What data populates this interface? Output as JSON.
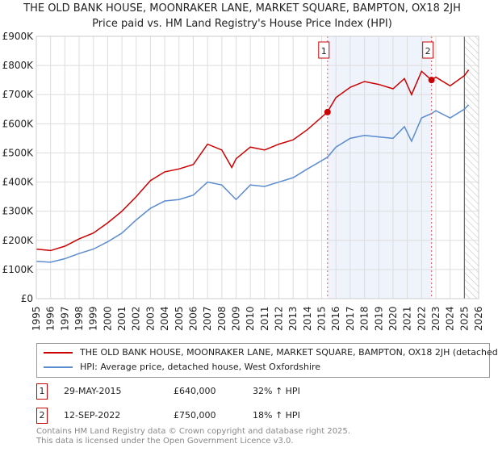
{
  "chart_data": {
    "type": "line",
    "title": "THE OLD BANK HOUSE, MOONRAKER LANE, MARKET SQUARE, BAMPTON, OX18 2JH",
    "subtitle": "Price paid vs. HM Land Registry's House Price Index (HPI)",
    "xlim": [
      1995,
      2026
    ],
    "ylim": [
      0,
      900000
    ],
    "yticks": [
      {
        "v": 0,
        "label": "£0"
      },
      {
        "v": 100000,
        "label": "£100K"
      },
      {
        "v": 200000,
        "label": "£200K"
      },
      {
        "v": 300000,
        "label": "£300K"
      },
      {
        "v": 400000,
        "label": "£400K"
      },
      {
        "v": 500000,
        "label": "£500K"
      },
      {
        "v": 600000,
        "label": "£600K"
      },
      {
        "v": 700000,
        "label": "£700K"
      },
      {
        "v": 800000,
        "label": "£800K"
      },
      {
        "v": 900000,
        "label": "£900K"
      }
    ],
    "xticks": [
      "1995",
      "1996",
      "1997",
      "1998",
      "1999",
      "2000",
      "2001",
      "2002",
      "2003",
      "2004",
      "2005",
      "2006",
      "2007",
      "2008",
      "2009",
      "2010",
      "2011",
      "2012",
      "2013",
      "2014",
      "2015",
      "2016",
      "2017",
      "2018",
      "2019",
      "2020",
      "2021",
      "2022",
      "2023",
      "2024",
      "2025",
      "2026"
    ],
    "series": [
      {
        "name": "THE OLD BANK HOUSE, MOONRAKER LANE, MARKET SQUARE, BAMPTON, OX18 2JH (detached",
        "color": "#cc0000",
        "x": [
          1995,
          1996,
          1997,
          1998,
          1999,
          2000,
          2001,
          2002,
          2003,
          2004,
          2005,
          2006,
          2007,
          2008,
          2008.7,
          2009,
          2010,
          2011,
          2012,
          2013,
          2014,
          2015.4,
          2016,
          2017,
          2018,
          2019,
          2020,
          2020.8,
          2021.3,
          2022,
          2022.7,
          2023,
          2024,
          2025,
          2025.3
        ],
        "y": [
          170000,
          165000,
          180000,
          205000,
          225000,
          260000,
          300000,
          350000,
          405000,
          435000,
          445000,
          460000,
          530000,
          510000,
          450000,
          480000,
          520000,
          510000,
          530000,
          545000,
          580000,
          640000,
          690000,
          725000,
          745000,
          735000,
          720000,
          755000,
          700000,
          780000,
          750000,
          760000,
          730000,
          765000,
          785000
        ]
      },
      {
        "name": "HPI: Average price, detached house, West Oxfordshire",
        "color": "#5b8bd0",
        "x": [
          1995,
          1996,
          1997,
          1998,
          1999,
          2000,
          2001,
          2002,
          2003,
          2004,
          2005,
          2006,
          2007,
          2008,
          2009,
          2010,
          2011,
          2012,
          2013,
          2014,
          2015.4,
          2016,
          2017,
          2018,
          2019,
          2020,
          2020.8,
          2021.3,
          2022,
          2022.7,
          2023,
          2024,
          2025,
          2025.3
        ],
        "y": [
          128000,
          125000,
          137000,
          155000,
          170000,
          195000,
          225000,
          270000,
          310000,
          335000,
          340000,
          355000,
          400000,
          390000,
          340000,
          390000,
          385000,
          400000,
          415000,
          445000,
          485000,
          520000,
          550000,
          560000,
          555000,
          550000,
          590000,
          540000,
          620000,
          635000,
          645000,
          620000,
          650000,
          665000
        ]
      }
    ],
    "sales": [
      {
        "id": "1",
        "x": 2015.41,
        "y": 640000,
        "date": "29-MAY-2015",
        "price": "£640,000",
        "hpi": "32% ↑ HPI"
      },
      {
        "id": "2",
        "x": 2022.7,
        "y": 750000,
        "date": "12-SEP-2022",
        "price": "£750,000",
        "hpi": "18% ↑ HPI"
      }
    ],
    "forecast_from": 2025.0
  },
  "footer": [
    "Contains HM Land Registry data © Crown copyright and database right 2025.",
    "This data is licensed under the Open Government Licence v3.0."
  ]
}
